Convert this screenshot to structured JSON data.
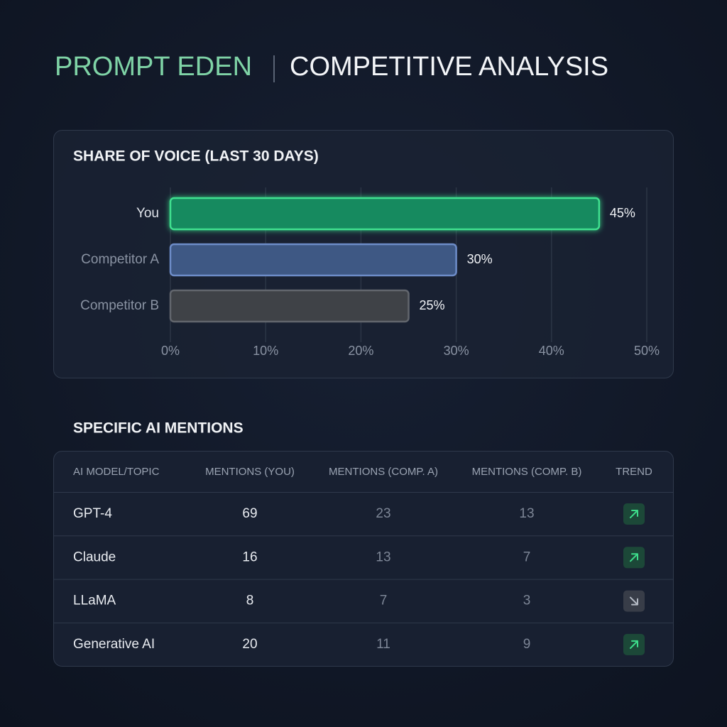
{
  "header": {
    "brand": "PROMPT EDEN",
    "title": "COMPETITIVE ANALYSIS"
  },
  "chart_data": {
    "type": "hbar",
    "title": "SHARE OF VOICE (LAST 30 DAYS)",
    "categories": [
      "You",
      "Competitor A",
      "Competitor B"
    ],
    "values": [
      45,
      30,
      25
    ],
    "value_labels": [
      "45%",
      "30%",
      "25%"
    ],
    "colors": [
      "#178a5f",
      "#3e5884",
      "#3f4247"
    ],
    "xlim": [
      0,
      50
    ],
    "xticks": [
      {
        "value": 0,
        "label": "0%"
      },
      {
        "value": 10,
        "label": "10%"
      },
      {
        "value": 20,
        "label": "20%"
      },
      {
        "value": 30,
        "label": "30%"
      },
      {
        "value": 40,
        "label": "40%"
      },
      {
        "value": 50,
        "label": "50%"
      }
    ],
    "grid": true
  },
  "table": {
    "title": "SPECIFIC AI MENTIONS",
    "columns": [
      "AI MODEL/TOPIC",
      "MENTIONS (YOU)",
      "MENTIONS (COMP. A)",
      "MENTIONS (COMP. B)",
      "TREND"
    ],
    "rows": [
      [
        "GPT-4",
        69,
        23,
        13
      ],
      [
        "Claude",
        16,
        13,
        7
      ],
      [
        "LLaMA",
        8,
        7,
        3
      ],
      [
        "Generative AI",
        20,
        11,
        9
      ]
    ],
    "trends": [
      "up",
      "up",
      "down",
      "up"
    ]
  }
}
